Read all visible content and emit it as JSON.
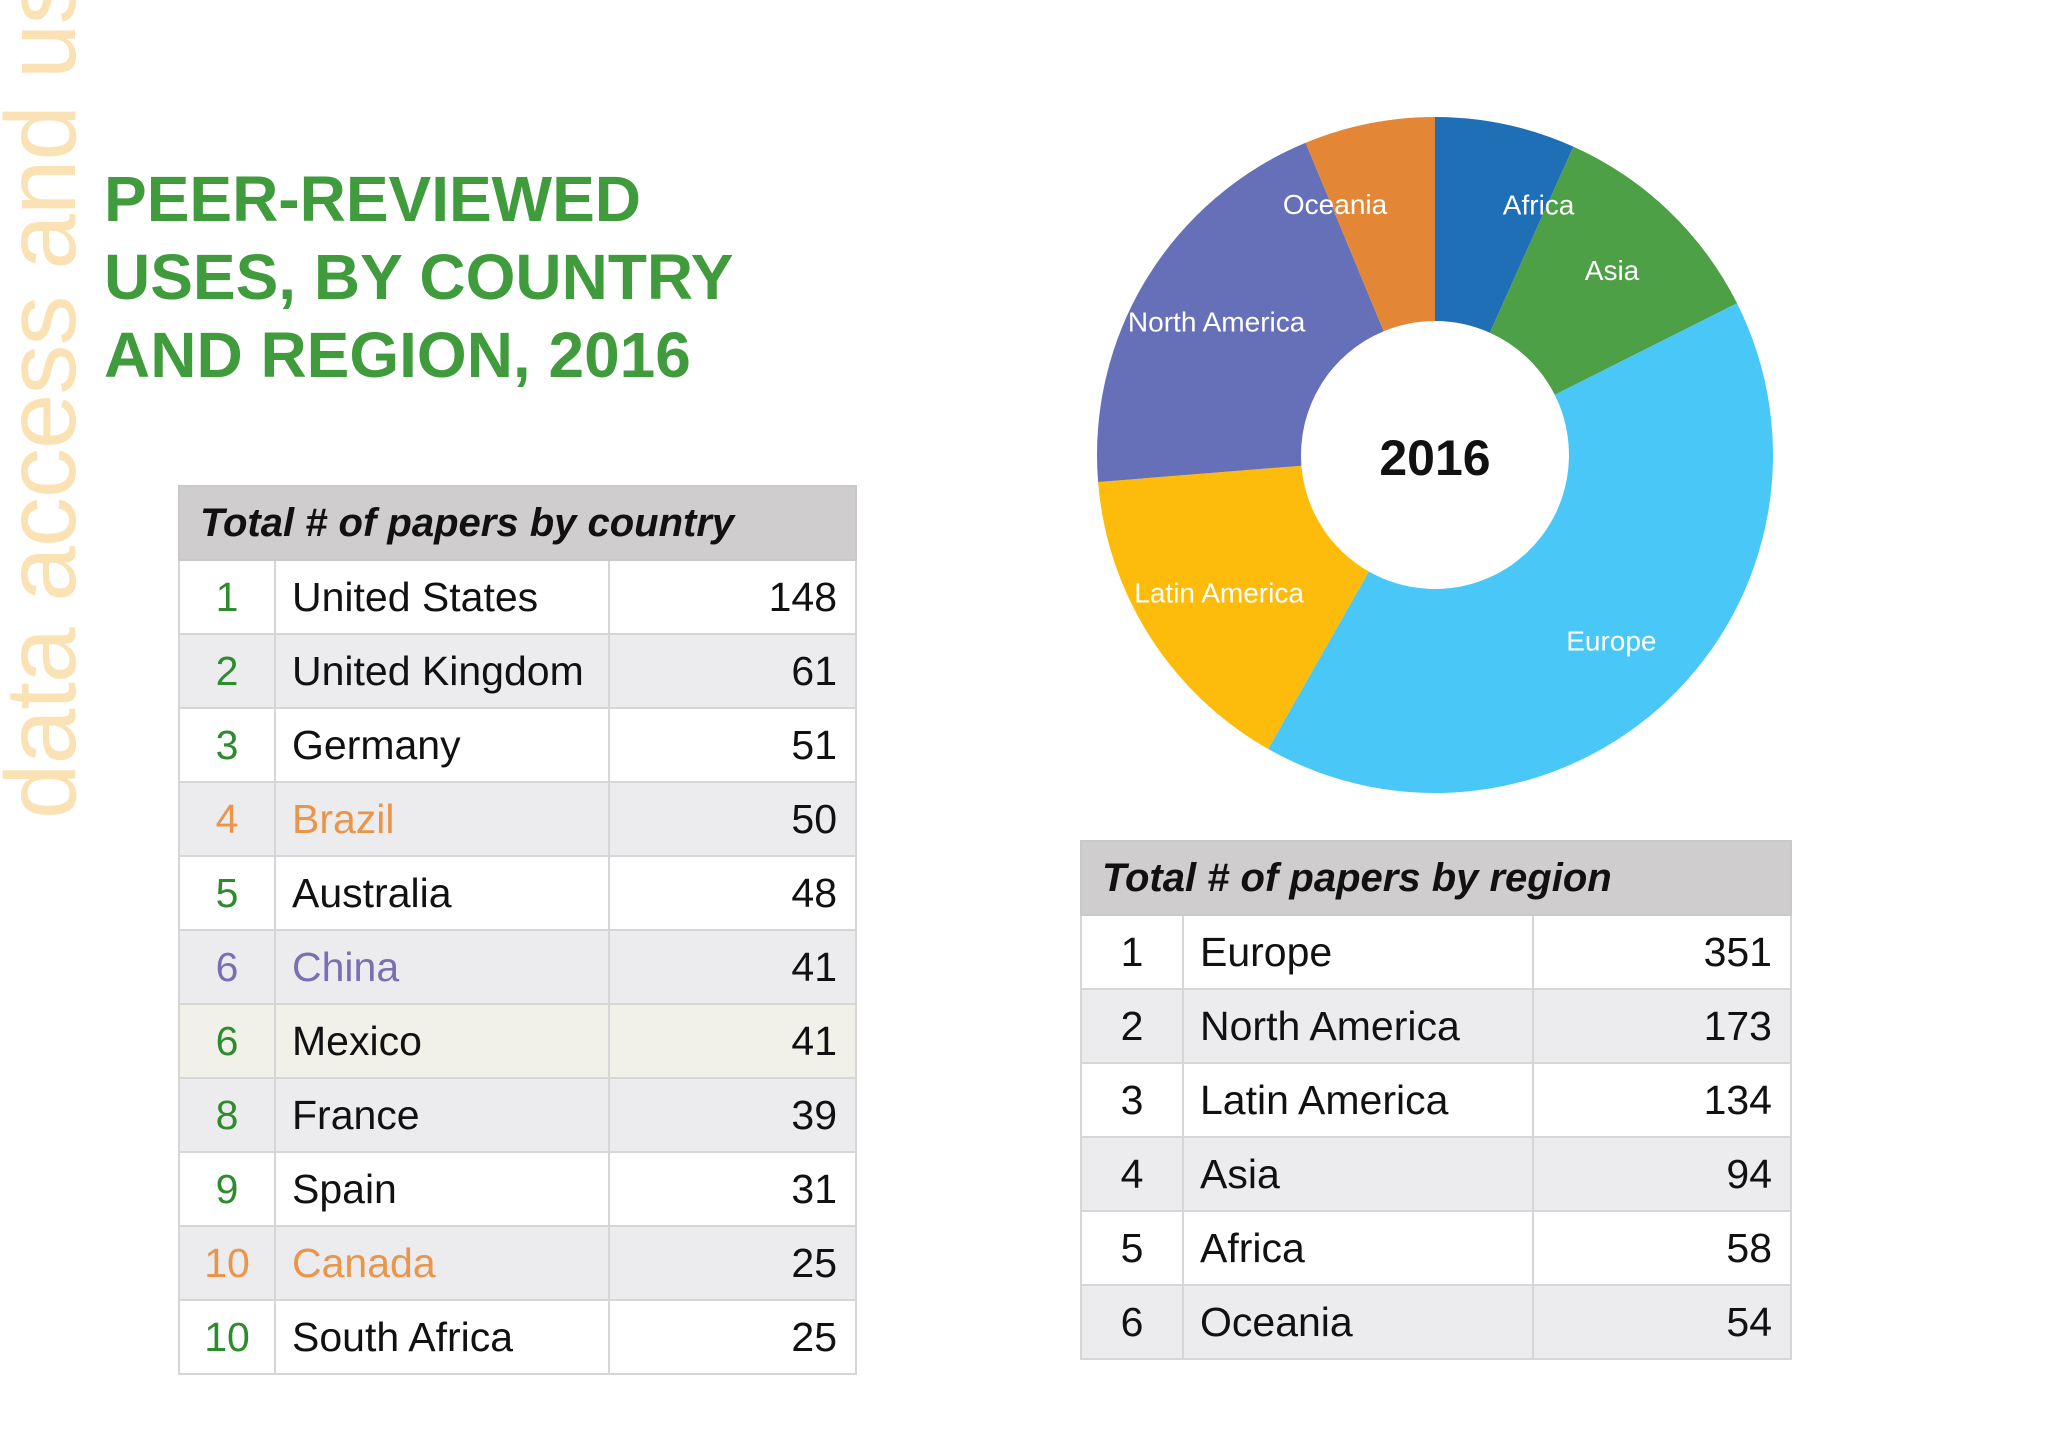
{
  "side_text": "data access and use",
  "title_lines": [
    "PEER-REVIEWED",
    "USES, BY COUNTRY",
    "AND REGION, 2016"
  ],
  "country_table": {
    "header": "Total # of papers by country",
    "rows": [
      {
        "rank": "1",
        "name": "United States",
        "value": "148",
        "highlight": ""
      },
      {
        "rank": "2",
        "name": "United Kingdom",
        "value": "61",
        "highlight": ""
      },
      {
        "rank": "3",
        "name": "Germany",
        "value": "51",
        "highlight": ""
      },
      {
        "rank": "4",
        "name": "Brazil",
        "value": "50",
        "highlight": "orange"
      },
      {
        "rank": "5",
        "name": "Australia",
        "value": "48",
        "highlight": ""
      },
      {
        "rank": "6",
        "name": "China",
        "value": "41",
        "highlight": "purple"
      },
      {
        "rank": "6",
        "name": "Mexico",
        "value": "41",
        "highlight": "cream"
      },
      {
        "rank": "8",
        "name": "France",
        "value": "39",
        "highlight": ""
      },
      {
        "rank": "9",
        "name": "Spain",
        "value": "31",
        "highlight": ""
      },
      {
        "rank": "10",
        "name": "Canada",
        "value": "25",
        "highlight": "orange"
      },
      {
        "rank": "10",
        "name": "South Africa",
        "value": "25",
        "highlight": ""
      }
    ]
  },
  "region_table": {
    "header": "Total # of papers by region",
    "rows": [
      {
        "rank": "1",
        "name": "Europe",
        "value": "351"
      },
      {
        "rank": "2",
        "name": "North America",
        "value": "173"
      },
      {
        "rank": "3",
        "name": "Latin America",
        "value": "134"
      },
      {
        "rank": "4",
        "name": "Asia",
        "value": "94"
      },
      {
        "rank": "5",
        "name": "Africa",
        "value": "58"
      },
      {
        "rank": "6",
        "name": "Oceania",
        "value": "54"
      }
    ]
  },
  "chart_data": {
    "type": "pie",
    "subtype": "donut",
    "center_label": "2016",
    "categories": [
      "Africa",
      "Asia",
      "Europe",
      "Latin America",
      "North America",
      "Oceania"
    ],
    "values": [
      58,
      94,
      351,
      134,
      173,
      54
    ],
    "colors": [
      "#1e6fb5",
      "#4ea046",
      "#49c8f8",
      "#fdbc0b",
      "#6670b8",
      "#e38737"
    ],
    "start_angle_deg": 0,
    "direction": "clockwise",
    "legend": "none (labels on slices)"
  },
  "colors": {
    "title": "#3f9b3c",
    "side_text": "#fbe2b4",
    "rank_green": "#2e8b2e",
    "highlight_orange": "#e9954a",
    "highlight_purple": "#7a6fb2",
    "header_bg": "#cfcdcd"
  }
}
